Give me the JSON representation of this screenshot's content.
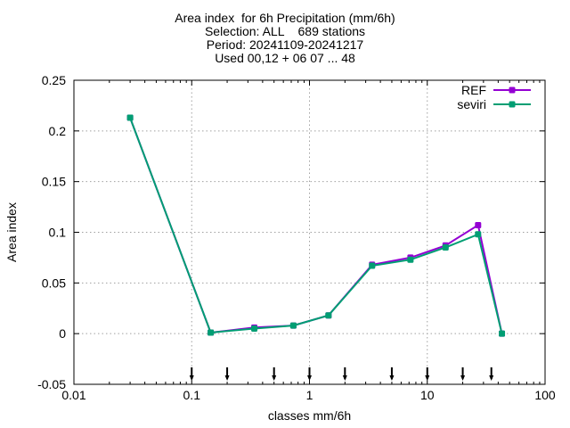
{
  "chart_data": {
    "type": "line",
    "title": [
      "Area index  for 6h Precipitation (mm/6h)",
      "Selection: ALL    689 stations",
      "Period: 20241109-20241217",
      "Used 00,12 + 06 07 ... 48"
    ],
    "xlabel": "classes mm/6h",
    "ylabel": "Area index",
    "xscale": "log",
    "xlim": [
      0.01,
      100
    ],
    "ylim": [
      -0.05,
      0.25
    ],
    "xticks": [
      0.01,
      0.1,
      1,
      10,
      100
    ],
    "xtick_labels": [
      "0.01",
      "0.1",
      "1",
      "10",
      "100"
    ],
    "yticks": [
      -0.05,
      0,
      0.05,
      0.1,
      0.15,
      0.2,
      0.25
    ],
    "ytick_labels": [
      "-0.05",
      "0",
      "0.05",
      "0.1",
      "0.15",
      "0.2",
      "0.25"
    ],
    "grid": true,
    "legend": "top-right",
    "x": [
      0.03,
      0.145,
      0.34,
      0.73,
      1.45,
      3.4,
      7.2,
      14.3,
      27,
      43
    ],
    "series": [
      {
        "name": "REF",
        "color": "#9400d3",
        "values": [
          0.213,
          0.001,
          0.006,
          0.008,
          0.018,
          0.068,
          0.075,
          0.087,
          0.107,
          0.0
        ]
      },
      {
        "name": "seviri",
        "color": "#009e73",
        "values": [
          0.213,
          0.001,
          0.005,
          0.008,
          0.018,
          0.067,
          0.073,
          0.085,
          0.098,
          0.0
        ]
      }
    ],
    "threshold_markers": [
      0.1,
      0.2,
      0.5,
      1,
      2,
      5,
      10,
      20,
      35
    ]
  }
}
